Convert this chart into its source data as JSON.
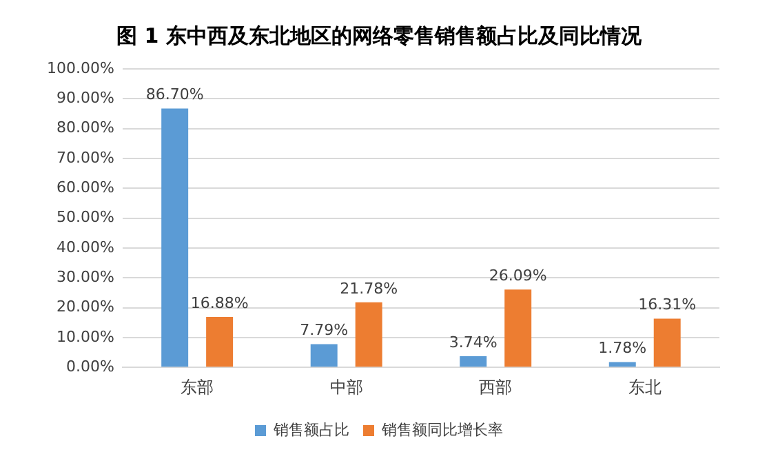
{
  "chart_data": {
    "type": "bar",
    "title": "图 1 东中西及东北地区的网络零售销售额占比及同比情况",
    "categories": [
      "东部",
      "中部",
      "西部",
      "东北"
    ],
    "series": [
      {
        "name": "销售额占比",
        "color": "#5b9bd5",
        "values": [
          86.7,
          7.79,
          3.74,
          1.78
        ],
        "value_labels": [
          "86.70%",
          "7.79%",
          "3.74%",
          "1.78%"
        ]
      },
      {
        "name": "销售额同比增长率",
        "color": "#ed7d31",
        "values": [
          16.88,
          21.78,
          26.09,
          16.31
        ],
        "value_labels": [
          "16.88%",
          "21.78%",
          "26.09%",
          "16.31%"
        ]
      }
    ],
    "ylim": [
      0,
      100
    ],
    "yticks": [
      {
        "value": 0,
        "label": "0.00%"
      },
      {
        "value": 10,
        "label": "10.00%"
      },
      {
        "value": 20,
        "label": "20.00%"
      },
      {
        "value": 30,
        "label": "30.00%"
      },
      {
        "value": 40,
        "label": "40.00%"
      },
      {
        "value": 50,
        "label": "50.00%"
      },
      {
        "value": 60,
        "label": "60.00%"
      },
      {
        "value": 70,
        "label": "70.00%"
      },
      {
        "value": 80,
        "label": "80.00%"
      },
      {
        "value": 90,
        "label": "90.00%"
      },
      {
        "value": 100,
        "label": "100.00%"
      }
    ],
    "grid": "y",
    "legend": "bottom"
  }
}
